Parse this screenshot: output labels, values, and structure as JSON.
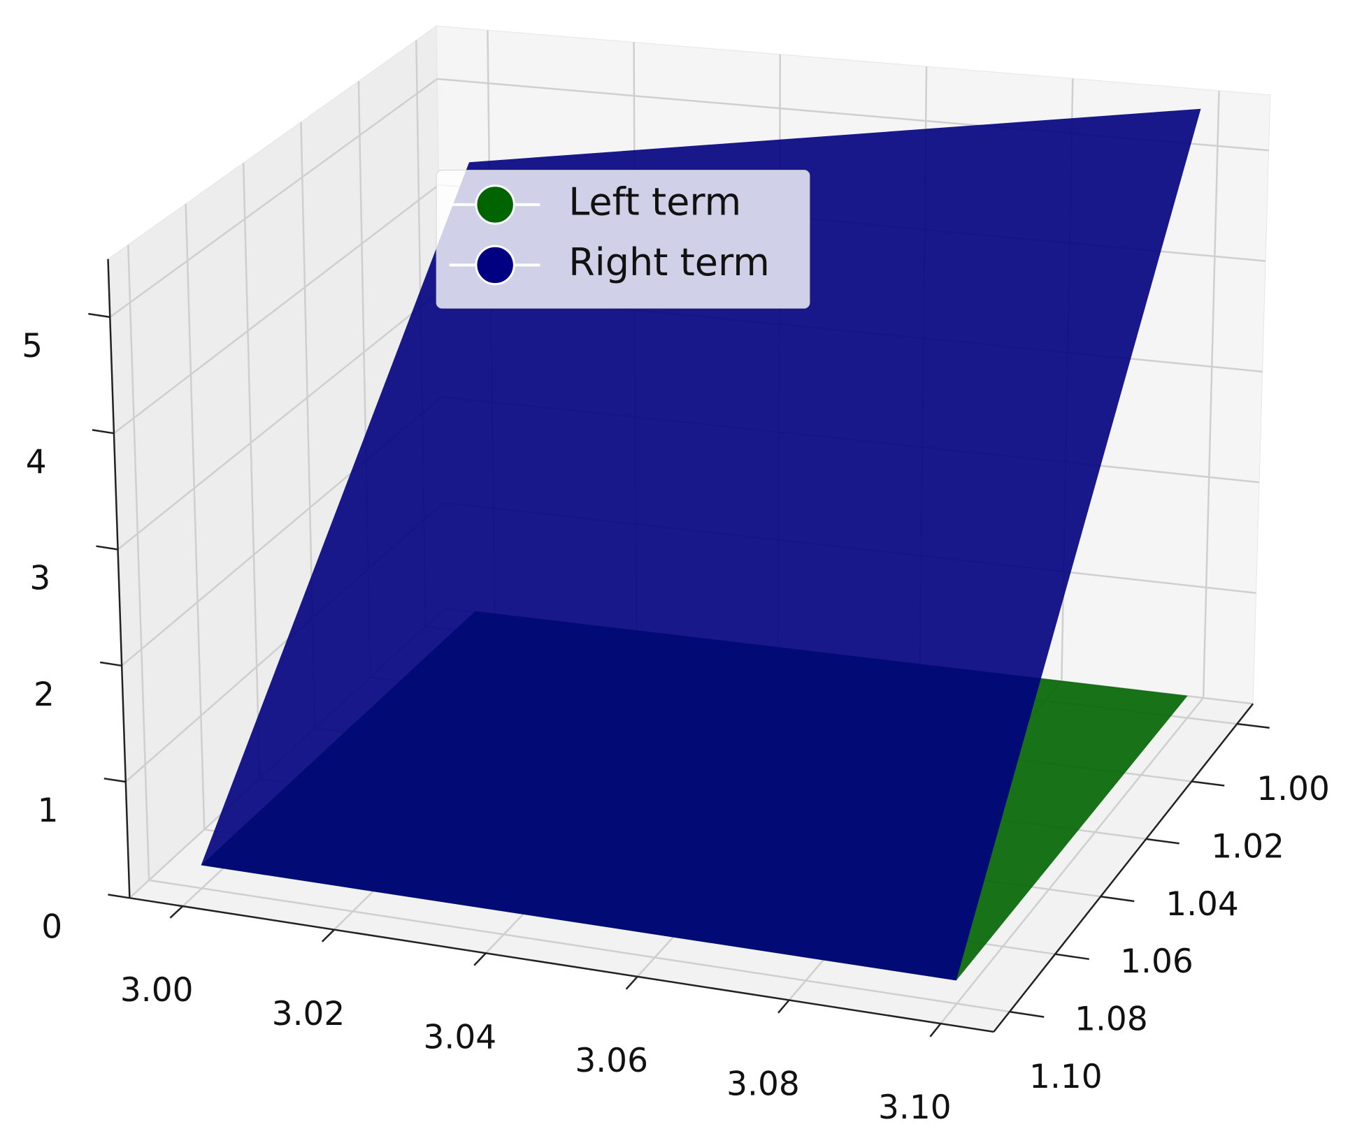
{
  "chart_data": {
    "type": "surface3d",
    "x": [
      3.0,
      3.1
    ],
    "y": [
      1.0,
      1.1
    ],
    "series": [
      {
        "name": "Left term",
        "color": "#006400",
        "values": [
          [
            0.2,
            0.2
          ],
          [
            0.2,
            0.2
          ]
        ]
      },
      {
        "name": "Right term",
        "color": "#000080",
        "values": [
          [
            4.4,
            5.5
          ],
          [
            0.2,
            0.2
          ]
        ]
      }
    ],
    "xlim": [
      2.993,
      3.107
    ],
    "ylim": [
      0.993,
      1.107
    ],
    "zlim": [
      0,
      5.5
    ],
    "xticks": [
      {
        "value": 3.0,
        "label": "3.00"
      },
      {
        "value": 3.02,
        "label": "3.02"
      },
      {
        "value": 3.04,
        "label": "3.04"
      },
      {
        "value": 3.06,
        "label": "3.06"
      },
      {
        "value": 3.08,
        "label": "3.08"
      },
      {
        "value": 3.1,
        "label": "3.10"
      }
    ],
    "yticks": [
      {
        "value": 1.0,
        "label": "1.00"
      },
      {
        "value": 1.02,
        "label": "1.02"
      },
      {
        "value": 1.04,
        "label": "1.04"
      },
      {
        "value": 1.06,
        "label": "1.06"
      },
      {
        "value": 1.08,
        "label": "1.08"
      },
      {
        "value": 1.1,
        "label": "1.10"
      }
    ],
    "zticks": [
      0,
      1,
      2,
      3,
      4,
      5
    ],
    "grid": true
  }
}
